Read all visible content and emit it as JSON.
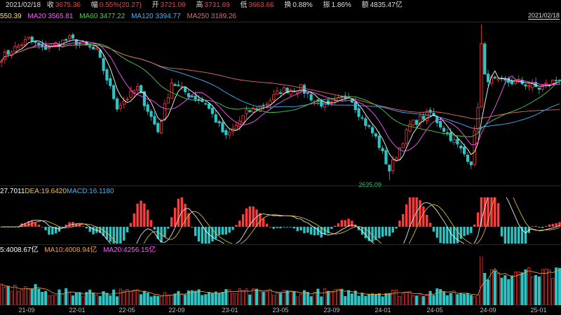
{
  "quote": {
    "date": "2021/02/18",
    "close_label": "收",
    "close": "3675.36",
    "change_label": "幅",
    "change": "0.55%(20.27)",
    "open_label": "开",
    "open": "3721.09",
    "high_label": "高",
    "high": "3731.69",
    "low_label": "低",
    "low": "3663.66",
    "turnover_label": "换",
    "turnover": "0.88%",
    "amplitude_label": "振",
    "amplitude": "1.86%",
    "amount_label": "额",
    "amount": "4835.47亿"
  },
  "ma_row": {
    "ma5": "550.39",
    "ma20": "MA20 3565.81",
    "ma60": "MA60 3477.22",
    "ma120": "MA120 3394.77",
    "ma250": "MA250 3189.26"
  },
  "crosshair_date": "2021/02/18",
  "low_annotation": "2635.09",
  "macd_row": {
    "dif": "27.7011",
    "dea": "DEA:19.6420",
    "macd": "MACD:16.1180"
  },
  "vol_row": {
    "vol": "5:4008.67亿",
    "ma10": "MA10:4008.94亿",
    "ma20": "MA20:4256.15亿"
  },
  "colors": {
    "up": "#ff3b3b",
    "down": "#2ec4c4",
    "ma5": "#ffffff",
    "ma20": "#ff55ff",
    "ma60": "#47d147",
    "ma120": "#3fb6ff",
    "ma250": "#e26a6a",
    "dif": "#ffffff",
    "dea": "#f5c542",
    "macd_label": "#3fb6ff"
  },
  "chart_data": {
    "type": "candlestick",
    "x_ticks": [
      "21-09",
      "22-01",
      "22-05",
      "22-09",
      "23-01",
      "23-05",
      "23-09",
      "24-01",
      "24-05",
      "24-09",
      "25-01"
    ],
    "anchors": [
      {
        "t": 0,
        "v": 3550
      },
      {
        "t": 8,
        "v": 3700
      },
      {
        "t": 12,
        "v": 3620
      },
      {
        "t": 20,
        "v": 3700
      },
      {
        "t": 28,
        "v": 3600
      },
      {
        "t": 34,
        "v": 3150
      },
      {
        "t": 40,
        "v": 3300
      },
      {
        "t": 46,
        "v": 2950
      },
      {
        "t": 50,
        "v": 3350
      },
      {
        "t": 55,
        "v": 3250
      },
      {
        "t": 60,
        "v": 3180
      },
      {
        "t": 66,
        "v": 2900
      },
      {
        "t": 72,
        "v": 3100
      },
      {
        "t": 78,
        "v": 3180
      },
      {
        "t": 82,
        "v": 3280
      },
      {
        "t": 88,
        "v": 3300
      },
      {
        "t": 92,
        "v": 3200
      },
      {
        "t": 96,
        "v": 3150
      },
      {
        "t": 102,
        "v": 3250
      },
      {
        "t": 106,
        "v": 3050
      },
      {
        "t": 110,
        "v": 2900
      },
      {
        "t": 114,
        "v": 2635
      },
      {
        "t": 120,
        "v": 3000
      },
      {
        "t": 126,
        "v": 3100
      },
      {
        "t": 132,
        "v": 2900
      },
      {
        "t": 138,
        "v": 2700
      },
      {
        "t": 141,
        "v": 3400
      },
      {
        "t": 146,
        "v": 3350
      },
      {
        "t": 152,
        "v": 3350
      },
      {
        "t": 158,
        "v": 3300
      },
      {
        "t": 164,
        "v": 3380
      }
    ],
    "ylim": [
      2550,
      3800
    ]
  }
}
